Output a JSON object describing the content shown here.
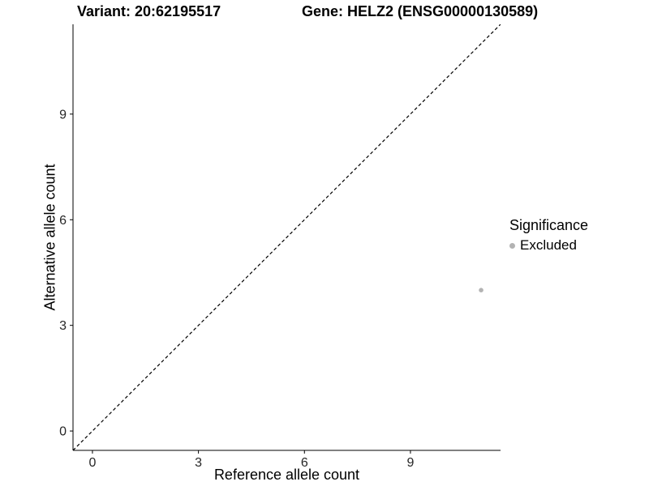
{
  "titles": {
    "variant": "Variant: 20:62195517",
    "gene": "Gene: HELZ2 (ENSG00000130589)"
  },
  "legend": {
    "title": "Significance",
    "items": [
      {
        "label": "Excluded",
        "color": "#b3b3b3"
      }
    ]
  },
  "chart_data": {
    "type": "scatter",
    "title_left": "Variant: 20:62195517",
    "title_right": "Gene: HELZ2 (ENSG00000130589)",
    "xlabel": "Reference allele count",
    "ylabel": "Alternative allele count",
    "xlim": [
      -0.55,
      11.55
    ],
    "ylim": [
      -0.55,
      11.55
    ],
    "xticks": [
      0,
      3,
      6,
      9
    ],
    "yticks": [
      0,
      3,
      6,
      9
    ],
    "grid": false,
    "background": "#ffffff",
    "axis_color": "#000000",
    "tick_label_color": "#262626",
    "reference_line": {
      "style": "dashed",
      "slope": 1,
      "intercept": 0,
      "color": "#000000"
    },
    "series": [
      {
        "name": "Excluded",
        "color": "#b3b3b3",
        "points": [
          {
            "x": 11,
            "y": 4
          }
        ]
      }
    ]
  }
}
